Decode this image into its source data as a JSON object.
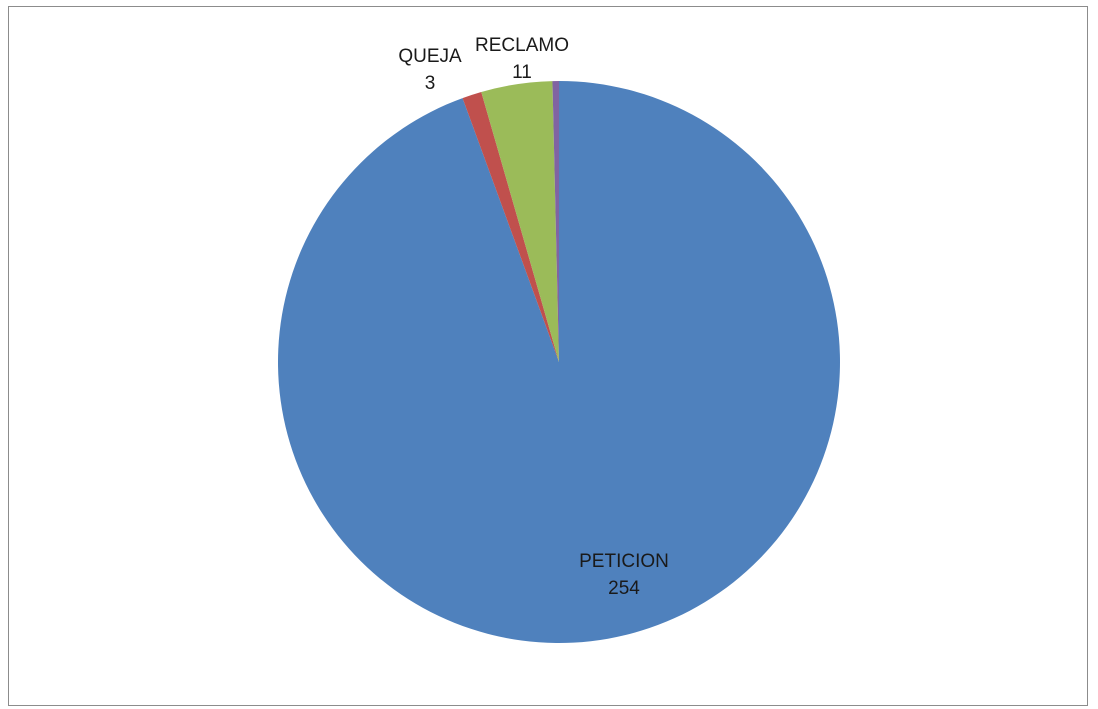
{
  "chart_data": {
    "type": "pie",
    "title": "",
    "slices": [
      {
        "label": "PETICION",
        "value": 254,
        "color": "#4F81BD",
        "data_label": "PETICION\n254"
      },
      {
        "label": "QUEJA",
        "value": 3,
        "color": "#C0504D",
        "data_label": "QUEJA\n3"
      },
      {
        "label": "RECLAMO",
        "value": 11,
        "color": "#9BBB59",
        "data_label": "RECLAMO\n11"
      },
      {
        "label": "",
        "value": 1,
        "color": "#8064A2",
        "data_label": ""
      }
    ],
    "start_angle_deg": 0,
    "direction": "clockwise",
    "legend": "none",
    "data_labels": "shown"
  }
}
